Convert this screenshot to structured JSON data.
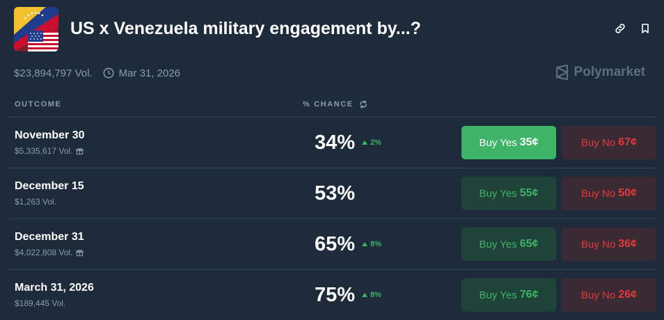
{
  "market": {
    "title": "US x Venezuela military engagement by...?",
    "volume": "$23,894,797 Vol.",
    "end_date": "Mar 31, 2026",
    "brand": "Polymarket"
  },
  "columns": {
    "outcome": "OUTCOME",
    "chance": "% CHANCE"
  },
  "outcomes": [
    {
      "name": "November 30",
      "volume": "$5,335,617 Vol.",
      "chance": "34%",
      "delta": "2%",
      "yes_label": "Buy Yes",
      "yes_price": "35¢",
      "no_label": "Buy No",
      "no_price": "67¢"
    },
    {
      "name": "December 15",
      "volume": "$1,263 Vol.",
      "chance": "53%",
      "delta": "",
      "yes_label": "Buy Yes",
      "yes_price": "55¢",
      "no_label": "Buy No",
      "no_price": "50¢"
    },
    {
      "name": "December 31",
      "volume": "$4,022,808 Vol.",
      "chance": "65%",
      "delta": "8%",
      "yes_label": "Buy Yes",
      "yes_price": "65¢",
      "no_label": "Buy No",
      "no_price": "36¢"
    },
    {
      "name": "March 31, 2026",
      "volume": "$189,445 Vol.",
      "chance": "75%",
      "delta": "8%",
      "yes_label": "Buy Yes",
      "yes_price": "76¢",
      "no_label": "Buy No",
      "no_price": "26¢"
    }
  ],
  "colors": {
    "background": "#1d2b3a",
    "yes": "#3db468",
    "no": "#e23939",
    "muted": "#8b9bb0"
  },
  "icons": [
    "flags-thumbnail",
    "link-icon",
    "bookmark-icon",
    "clock-icon",
    "polymarket-logo-icon",
    "refresh-icon",
    "gift-icon",
    "up-triangle-icon"
  ]
}
